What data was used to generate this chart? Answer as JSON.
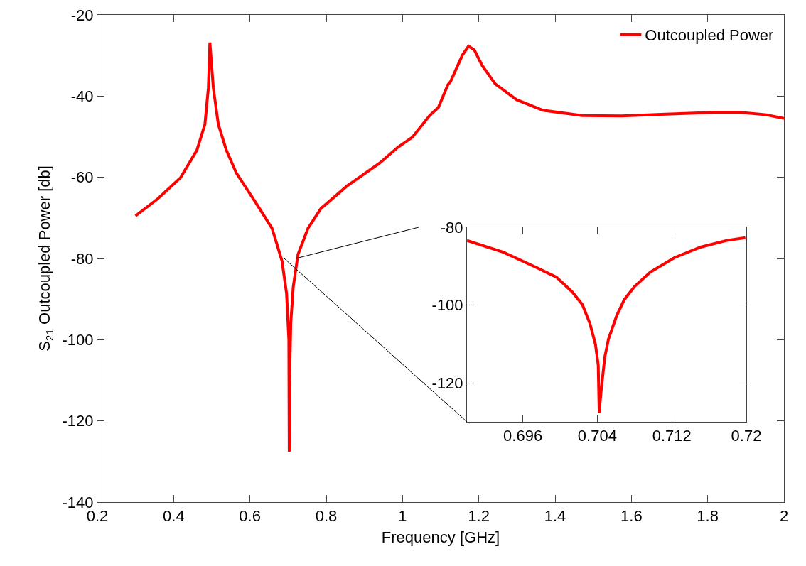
{
  "chart_data": [
    {
      "type": "line",
      "xlabel": "Frequency [GHz]",
      "ylabel": "S$_{21}$ Outcoupled Power [db]",
      "xlim": [
        0.2,
        2
      ],
      "xticks": [
        0.2,
        0.4,
        0.6,
        0.8,
        1,
        1.2,
        1.4,
        1.6,
        1.8,
        2
      ],
      "ylim": [
        -140,
        -20
      ],
      "yticks": [
        -140,
        -120,
        -100,
        -80,
        -60,
        -40,
        -20
      ],
      "grid": false,
      "legend": "top right",
      "marker": "none",
      "line_style": "solid",
      "series": [
        {
          "name": "Outcoupled Power",
          "color": "#ff0000",
          "x": [
            0.3,
            0.358,
            0.418,
            0.461,
            0.482,
            0.491,
            0.495,
            0.504,
            0.517,
            0.538,
            0.564,
            0.615,
            0.658,
            0.684,
            0.696,
            0.702,
            0.703,
            0.704,
            0.707,
            0.7135,
            0.726,
            0.752,
            0.786,
            0.855,
            0.94,
            0.988,
            1.026,
            1.071,
            1.094,
            1.119,
            1.126,
            1.157,
            1.173,
            1.188,
            1.209,
            1.243,
            1.299,
            1.368,
            1.471,
            1.575,
            1.678,
            1.816,
            1.885,
            1.954,
            2.0
          ],
          "values": [
            -69.5,
            -65.3,
            -60.1,
            -53.3,
            -46.9,
            -38.0,
            -26.8,
            -38.0,
            -46.9,
            -53.3,
            -58.9,
            -66.2,
            -72.6,
            -80.6,
            -88.6,
            -100,
            -127.6,
            -110,
            -96,
            -87.0,
            -79.0,
            -72.6,
            -67.7,
            -62.1,
            -56.5,
            -52.6,
            -50.1,
            -44.8,
            -42.8,
            -37.2,
            -36.4,
            -29.9,
            -27.7,
            -28.6,
            -32.5,
            -37.0,
            -40.9,
            -43.5,
            -44.8,
            -44.9,
            -44.5,
            -44.0,
            -44.0,
            -44.6,
            -45.5
          ]
        }
      ]
    },
    {
      "type": "line",
      "xlim": [
        0.69,
        0.72
      ],
      "xticks": [
        0.696,
        0.704,
        0.712,
        0.72
      ],
      "ylim": [
        -130,
        -80
      ],
      "yticks": [
        -120,
        -100,
        -80
      ],
      "grid": false,
      "legend": false,
      "marker": "none",
      "line_style": "solid",
      "series": [
        {
          "color": "#ff0000",
          "x": [
            0.69,
            0.6939,
            0.6976,
            0.6996,
            0.7013,
            0.7024,
            0.7032,
            0.7038,
            0.7041,
            0.7042,
            0.7044,
            0.7048,
            0.7052,
            0.7061,
            0.7069,
            0.708,
            0.7097,
            0.7123,
            0.7151,
            0.7179,
            0.7199
          ],
          "values": [
            -83.4,
            -86.4,
            -90.5,
            -92.8,
            -96.6,
            -99.9,
            -104.7,
            -110.1,
            -115.5,
            -127.6,
            -122.2,
            -113.4,
            -108.7,
            -102.6,
            -98.6,
            -95.2,
            -91.5,
            -87.8,
            -85.1,
            -83.4,
            -82.7
          ]
        }
      ]
    }
  ]
}
